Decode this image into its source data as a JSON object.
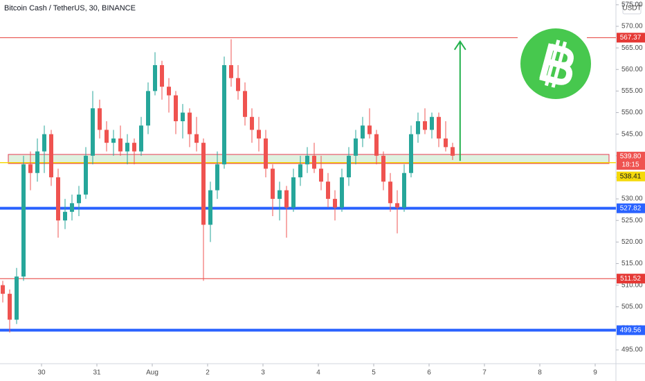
{
  "chart_data": {
    "type": "candlestick",
    "title": "Bitcoin Cash / TetherUS, 30, BINANCE",
    "currency": "USDT",
    "up_color": "#26a69a",
    "down_color": "#ef5350",
    "xlim": [
      -0.75,
      10.375
    ],
    "ylim": [
      491.8,
      576.1
    ],
    "xticks": [
      {
        "value": 0,
        "label": "30"
      },
      {
        "value": 1,
        "label": "31"
      },
      {
        "value": 2,
        "label": "Aug"
      },
      {
        "value": 3,
        "label": "2"
      },
      {
        "value": 4,
        "label": "3"
      },
      {
        "value": 5,
        "label": "4"
      },
      {
        "value": 6,
        "label": "5"
      },
      {
        "value": 7,
        "label": "6"
      },
      {
        "value": 8,
        "label": "7"
      },
      {
        "value": 9,
        "label": "8"
      },
      {
        "value": 10,
        "label": "9"
      }
    ],
    "yticks": [
      {
        "value": 495,
        "label": "495.00"
      },
      {
        "value": 500,
        "label": "500.00"
      },
      {
        "value": 505,
        "label": "505.00"
      },
      {
        "value": 510,
        "label": "510.00"
      },
      {
        "value": 515,
        "label": "515.00"
      },
      {
        "value": 520,
        "label": "520.00"
      },
      {
        "value": 525,
        "label": "525.00"
      },
      {
        "value": 530,
        "label": "530.00"
      },
      {
        "value": 535,
        "label": "535.00"
      },
      {
        "value": 540,
        "label": "540.00"
      },
      {
        "value": 545,
        "label": "545.00"
      },
      {
        "value": 550,
        "label": "550.00"
      },
      {
        "value": 555,
        "label": "555.00"
      },
      {
        "value": 560,
        "label": "560.00"
      },
      {
        "value": 565,
        "label": "565.00"
      },
      {
        "value": 570,
        "label": "570.00"
      },
      {
        "value": 575,
        "label": "575.00"
      }
    ],
    "x": [
      -0.7,
      -0.575,
      -0.45,
      -0.325,
      -0.2,
      -0.075,
      0.05,
      0.175,
      0.3,
      0.425,
      0.55,
      0.675,
      0.8,
      0.925,
      1.05,
      1.175,
      1.3,
      1.425,
      1.55,
      1.675,
      1.8,
      1.925,
      2.05,
      2.175,
      2.3,
      2.425,
      2.55,
      2.675,
      2.8,
      2.925,
      3.05,
      3.175,
      3.3,
      3.425,
      3.55,
      3.675,
      3.8,
      3.925,
      4.05,
      4.175,
      4.3,
      4.425,
      4.55,
      4.675,
      4.8,
      4.925,
      5.05,
      5.175,
      5.3,
      5.425,
      5.55,
      5.675,
      5.8,
      5.925,
      6.05,
      6.175,
      6.3,
      6.425,
      6.55,
      6.675,
      6.8,
      6.925,
      7.05,
      7.175,
      7.3,
      7.425
    ],
    "open": [
      510,
      508,
      502,
      512,
      538,
      536,
      541,
      545,
      535,
      525,
      527,
      529,
      531,
      540,
      551,
      546,
      543,
      544,
      541,
      543,
      541,
      547,
      555,
      561,
      556,
      554,
      548,
      550,
      545,
      543,
      524,
      532,
      538,
      561,
      558,
      555,
      549,
      546,
      544,
      537,
      530,
      532,
      528,
      535,
      538,
      540,
      537,
      534,
      530,
      528,
      535,
      540,
      544,
      547,
      545,
      540,
      534,
      529,
      528,
      536,
      545,
      548,
      546,
      549,
      544,
      542
    ],
    "high": [
      511,
      509,
      514,
      540,
      541,
      544,
      547,
      546,
      537,
      530,
      531,
      533,
      542,
      555,
      553,
      548,
      546,
      547,
      545,
      544,
      549,
      557,
      564,
      562,
      558,
      555,
      552,
      551,
      549,
      544,
      534,
      541,
      563,
      567,
      561,
      557,
      551,
      549,
      546,
      538,
      534,
      533,
      537,
      540,
      542,
      543,
      540,
      536,
      532,
      537,
      542,
      546,
      549,
      551,
      546,
      541,
      536,
      532,
      538,
      547,
      550,
      551,
      550,
      550,
      548,
      543
    ],
    "low": [
      506,
      499,
      501,
      511,
      532,
      534,
      536,
      533,
      521,
      523,
      525,
      526,
      530,
      538,
      544,
      541,
      540,
      540,
      538,
      538,
      540,
      545,
      554,
      553,
      550,
      545,
      544,
      542,
      541,
      511,
      520,
      530,
      537,
      556,
      553,
      547,
      543,
      541,
      535,
      526,
      525,
      521,
      527,
      533,
      536,
      536,
      532,
      528,
      525,
      527,
      533,
      538,
      542,
      544,
      538,
      532,
      527,
      522,
      527,
      535,
      543,
      545,
      544,
      542,
      541,
      539
    ],
    "close": [
      508,
      502,
      512,
      538,
      536,
      541,
      545,
      535,
      525,
      527,
      529,
      531,
      540,
      551,
      546,
      543,
      544,
      541,
      543,
      541,
      547,
      555,
      561,
      556,
      554,
      548,
      550,
      545,
      543,
      524,
      532,
      538,
      561,
      558,
      555,
      549,
      546,
      544,
      537,
      530,
      532,
      528,
      535,
      538,
      540,
      537,
      534,
      530,
      528,
      535,
      540,
      544,
      547,
      545,
      540,
      534,
      529,
      528,
      536,
      545,
      548,
      546,
      549,
      544,
      542,
      540
    ],
    "levels": [
      {
        "value": 567.37,
        "color": "#e53935",
        "width": 1
      },
      {
        "value": 527.82,
        "color": "#2962ff",
        "width": 4
      },
      {
        "value": 511.52,
        "color": "#e53935",
        "width": 1
      },
      {
        "value": 499.56,
        "color": "#2962ff",
        "width": 4
      }
    ],
    "support_line": {
      "value": 538.41,
      "color": "#f5d90a"
    },
    "zone": [
      538.2,
      540.3
    ],
    "last_price": {
      "value": 539.8,
      "label": "539.80",
      "countdown": "18:15"
    },
    "arrow": {
      "x": 7.56,
      "from": 538.8,
      "to": 566.5,
      "color": "#22b14c"
    }
  }
}
